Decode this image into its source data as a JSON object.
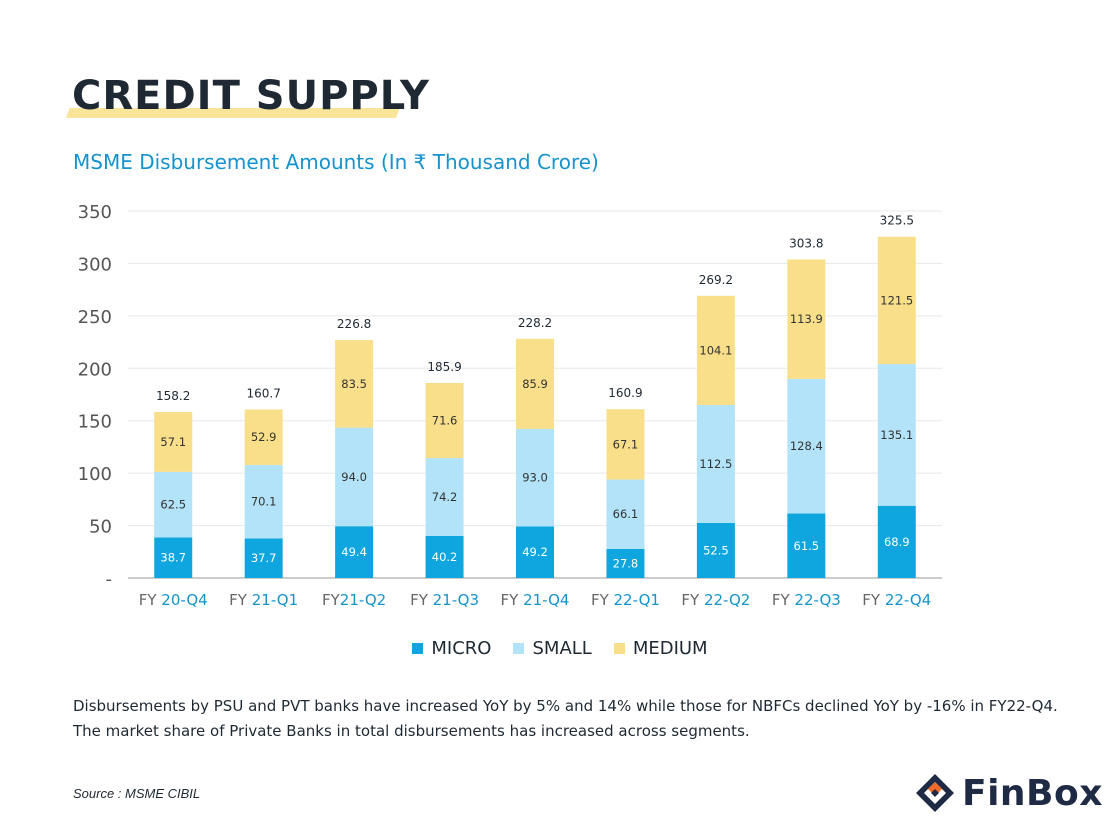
{
  "page": {
    "title": "CREDIT SUPPLY",
    "subtitle": "MSME Disbursement Amounts (In ₹ Thousand Crore)",
    "note_lines": [
      "Disbursements by PSU and PVT banks have increased YoY by 5% and 14% while those for NBFCs declined YoY by -16% in FY22-Q4.",
      "The market share of Private Banks in total disbursements has increased across segments."
    ],
    "source": "Source : MSME CIBIL",
    "logo_text": "FinBox"
  },
  "colors": {
    "micro": "#0fa6df",
    "small": "#b3e3f8",
    "medium": "#f9df8a",
    "accent": "#1493cc",
    "logo_dark": "#1f2a44",
    "logo_orange": "#f26b2a"
  },
  "chart_data": {
    "type": "bar",
    "stacked": true,
    "categories": [
      [
        "FY ",
        "20-Q4"
      ],
      [
        "FY ",
        "21-Q1"
      ],
      [
        "FY",
        "21-Q2"
      ],
      [
        "FY ",
        "21-Q3"
      ],
      [
        "FY ",
        "21-Q4"
      ],
      [
        "FY ",
        "22-Q1"
      ],
      [
        "FY ",
        "22-Q2"
      ],
      [
        "FY ",
        "22-Q3"
      ],
      [
        "FY ",
        "22-Q4"
      ]
    ],
    "series": [
      {
        "name": "MICRO",
        "key": "micro",
        "values": [
          38.7,
          37.7,
          49.4,
          40.2,
          49.2,
          27.8,
          52.5,
          61.5,
          68.9
        ],
        "labels": [
          "38.7",
          "37.7",
          "49.4",
          "40.2",
          "49.2",
          "27.8",
          "52.5",
          "61.5",
          "68.9"
        ]
      },
      {
        "name": "SMALL",
        "key": "small",
        "values": [
          62.5,
          70.1,
          94.0,
          74.2,
          93.0,
          66.1,
          112.5,
          128.4,
          135.1
        ],
        "labels": [
          "62.5",
          "70.1",
          "94.0",
          "74.2",
          "93.0",
          "66.1",
          "112.5",
          "128.4",
          "135.1"
        ]
      },
      {
        "name": "MEDIUM",
        "key": "medium",
        "values": [
          57.1,
          52.9,
          83.5,
          71.6,
          85.9,
          67.1,
          104.1,
          113.9,
          121.5
        ],
        "labels": [
          "57.1",
          "52.9",
          "83.5",
          "71.6",
          "85.9",
          "67.1",
          "104.1",
          "113.9",
          "121.5"
        ]
      }
    ],
    "totals": [
      "158.2",
      "160.7",
      "226.8",
      "185.9",
      "228.2",
      "160.9",
      "269.2",
      "303.8",
      "325.5"
    ],
    "ylim": [
      0,
      350
    ],
    "yticks": [
      0,
      50,
      100,
      150,
      200,
      250,
      300,
      350
    ],
    "ytick_labels": [
      "-",
      "50",
      "100",
      "150",
      "200",
      "250",
      "300",
      "350"
    ],
    "grid": true,
    "legend_position": "bottom-center"
  }
}
